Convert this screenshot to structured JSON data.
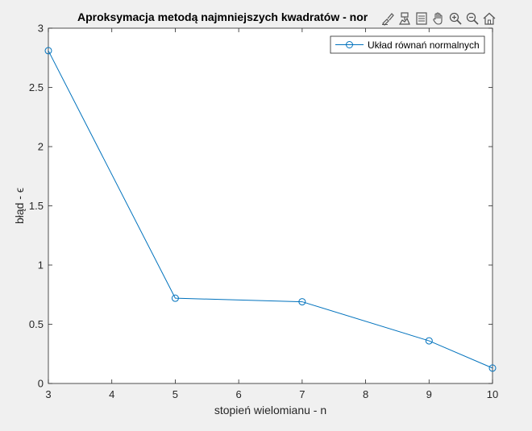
{
  "figure": {
    "background": "#f0f0f0",
    "toolbar": [
      {
        "name": "brush-icon",
        "title": "Brush/Select Data"
      },
      {
        "name": "data-cursor-icon",
        "title": "Data Tips"
      },
      {
        "name": "edit-plot-icon",
        "title": "Edit Plot"
      },
      {
        "name": "pan-icon",
        "title": "Pan"
      },
      {
        "name": "zoom-in-icon",
        "title": "Zoom In"
      },
      {
        "name": "zoom-out-icon",
        "title": "Zoom Out"
      },
      {
        "name": "home-icon",
        "title": "Restore View"
      }
    ]
  },
  "chart_data": {
    "type": "line",
    "title": "Aproksymacja metodą najmniejszych kwadratów - nor",
    "xlabel": "stopień wielomianu - n",
    "ylabel": "błąd - ϵ",
    "xlim": [
      3,
      10
    ],
    "ylim": [
      0,
      3
    ],
    "xticks": [
      3,
      4,
      5,
      6,
      7,
      8,
      9,
      10
    ],
    "yticks": [
      0,
      0.5,
      1,
      1.5,
      2,
      2.5,
      3
    ],
    "ytick_labels": [
      "0",
      "0.5",
      "1",
      "1.5",
      "2",
      "2.5",
      "3"
    ],
    "grid": false,
    "legend_position": "top-right",
    "series": [
      {
        "name": "Układ równań normalnych",
        "color": "#0072bd",
        "marker": "circle",
        "x": [
          3,
          5,
          7,
          9,
          10
        ],
        "y": [
          2.81,
          0.72,
          0.69,
          0.36,
          0.13
        ]
      }
    ]
  }
}
